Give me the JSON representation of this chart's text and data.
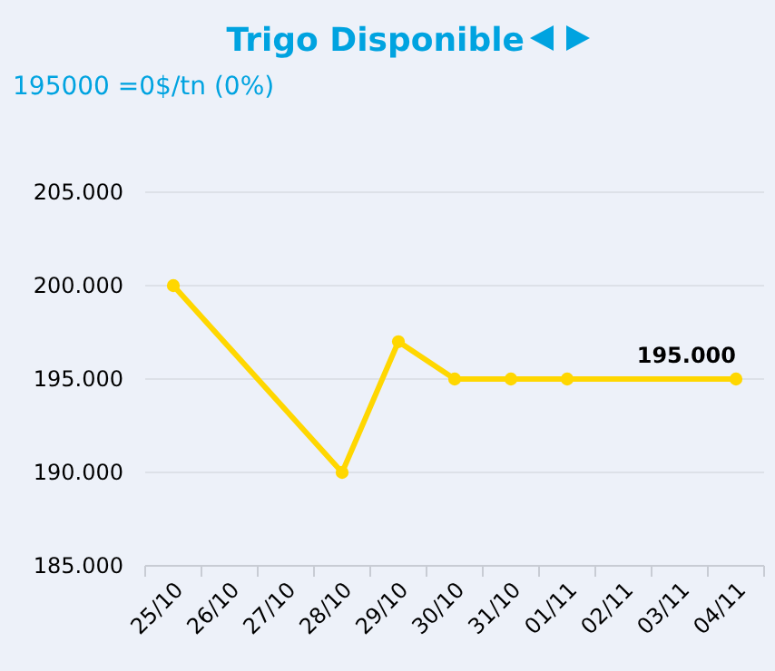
{
  "chart_data": {
    "type": "line",
    "title": "Trigo Disponible",
    "subtitle": "195000 =0$/tn (0%)",
    "categories": [
      "25/10",
      "26/10",
      "27/10",
      "28/10",
      "29/10",
      "30/10",
      "31/10",
      "01/11",
      "02/11",
      "03/11",
      "04/11"
    ],
    "series": [
      {
        "color": "#ffd700",
        "values": [
          200000,
          null,
          null,
          190000,
          197000,
          195000,
          195000,
          195000,
          null,
          null,
          195000
        ],
        "value_labels": [
          null,
          null,
          null,
          null,
          null,
          null,
          null,
          null,
          null,
          null,
          "195.000"
        ]
      }
    ],
    "ylim": [
      185000,
      205000
    ],
    "yticks": [
      {
        "value": 185000,
        "label": "185.000"
      },
      {
        "value": 190000,
        "label": "190.000"
      },
      {
        "value": 195000,
        "label": "195.000"
      },
      {
        "value": 200000,
        "label": "200.000"
      },
      {
        "value": 205000,
        "label": "205.000"
      }
    ],
    "grid": "y",
    "marker": "circle"
  }
}
